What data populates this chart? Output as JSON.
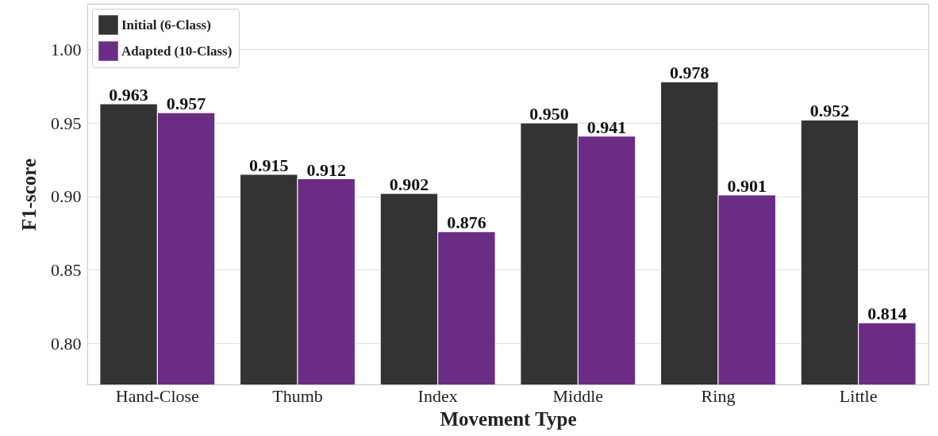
{
  "chart_data": {
    "type": "bar",
    "xlabel": "Movement Type",
    "ylabel": "F1-score",
    "categories": [
      "Hand-Close",
      "Thumb",
      "Index",
      "Middle",
      "Ring",
      "Little"
    ],
    "series": [
      {
        "name": "Initial (6-Class)",
        "color": "#333333",
        "values": [
          0.963,
          0.915,
          0.902,
          0.95,
          0.978,
          0.952
        ],
        "value_labels": [
          "0.963",
          "0.915",
          "0.902",
          "0.950",
          "0.978",
          "0.952"
        ]
      },
      {
        "name": "Adapted (10-Class)",
        "color": "#6a2c84",
        "values": [
          0.957,
          0.912,
          0.876,
          0.941,
          0.901,
          0.814
        ],
        "value_labels": [
          "0.957",
          "0.912",
          "0.876",
          "0.941",
          "0.901",
          "0.814"
        ]
      }
    ],
    "ylim": [
      0.772,
      1.031
    ],
    "yticks": [
      {
        "value": 0.8,
        "label": "0.80"
      },
      {
        "value": 0.85,
        "label": "0.85"
      },
      {
        "value": 0.9,
        "label": "0.90"
      },
      {
        "value": 0.95,
        "label": "0.95"
      },
      {
        "value": 1.0,
        "label": "1.00"
      }
    ],
    "grid": "y",
    "legend": "top left"
  }
}
